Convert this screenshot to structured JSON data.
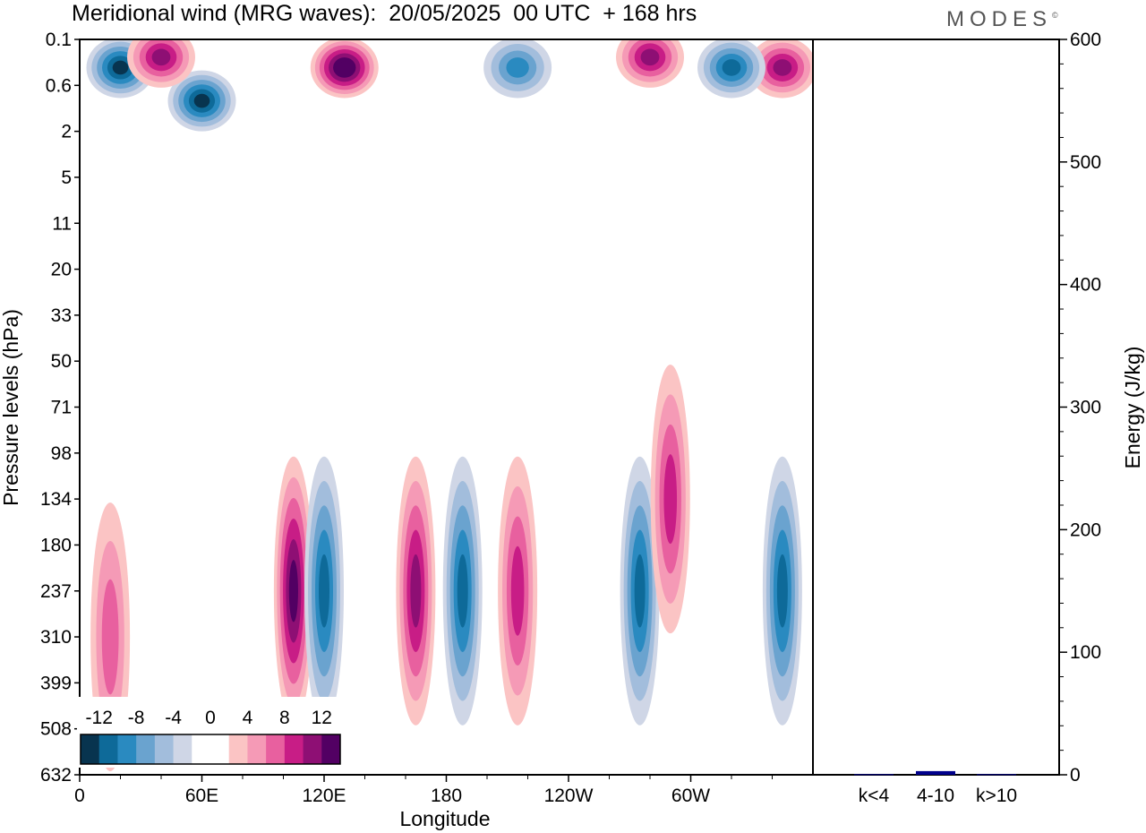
{
  "title": "Meridional wind (MRG waves):  20/05/2025  00 UTC  + 168 hrs",
  "logo": "MODES",
  "logo_mark": "©",
  "chart_data": [
    {
      "type": "heatmap",
      "title": "Meridional wind (MRG waves):  20/05/2025  00 UTC  + 168 hrs",
      "xlabel": "Longitude",
      "ylabel": "Pressure levels (hPa)",
      "x_ticks": [
        "0",
        "60E",
        "120E",
        "180",
        "120W",
        "60W"
      ],
      "y_ticks": [
        "0.1",
        "0.6",
        "2",
        "5",
        "11",
        "20",
        "33",
        "50",
        "71",
        "98",
        "134",
        "180",
        "237",
        "310",
        "399",
        "508",
        "632"
      ],
      "colorbar": {
        "labels": [
          "-12",
          "-8",
          "-4",
          "0",
          "4",
          "8",
          "12"
        ],
        "colors": [
          "#08344f",
          "#0e6a99",
          "#2a8ac0",
          "#6aa3cf",
          "#a2bddc",
          "#cfd6e6",
          "#ffffff",
          "#ffffff",
          "#fbc4c4",
          "#f59ab6",
          "#e8609f",
          "#c81d86",
          "#8e0f74",
          "#520063"
        ]
      },
      "features": [
        {
          "lon": 130,
          "level": 0.3,
          "value": 14
        },
        {
          "lon": 60,
          "level": 0.9,
          "value": -13
        },
        {
          "lon": 20,
          "level": 0.3,
          "value": -12
        },
        {
          "lon": 40,
          "level": 0.2,
          "value": 10
        },
        {
          "lon": 215,
          "level": 0.3,
          "value": -8
        },
        {
          "lon": 280,
          "level": 0.2,
          "value": 10
        },
        {
          "lon": 345,
          "level": 0.3,
          "value": 10
        },
        {
          "lon": 320,
          "level": 0.3,
          "value": -10
        },
        {
          "lon": 105,
          "level": 237,
          "value": 12
        },
        {
          "lon": 120,
          "level": 237,
          "value": -10
        },
        {
          "lon": 165,
          "level": 237,
          "value": 10
        },
        {
          "lon": 188,
          "level": 237,
          "value": -10
        },
        {
          "lon": 215,
          "level": 237,
          "value": 8
        },
        {
          "lon": 275,
          "level": 237,
          "value": -10
        },
        {
          "lon": 290,
          "level": 134,
          "value": 8
        },
        {
          "lon": 345,
          "level": 237,
          "value": -10
        },
        {
          "lon": 15,
          "level": 310,
          "value": 6
        }
      ]
    },
    {
      "type": "bar",
      "ylabel": "Energy (J/kg)",
      "ylim": [
        0,
        600
      ],
      "y_ticks": [
        "0",
        "100",
        "200",
        "300",
        "400",
        "500",
        "600"
      ],
      "categories": [
        "k<4",
        "4-10",
        "k>10"
      ],
      "values": [
        0.5,
        3,
        0.5
      ],
      "bar_color": "#00008b"
    }
  ]
}
